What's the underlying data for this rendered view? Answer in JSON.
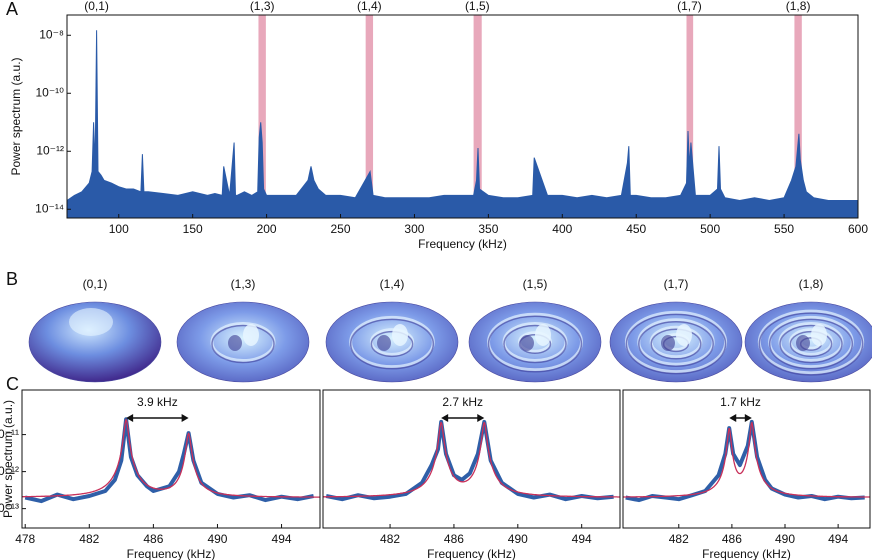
{
  "chart_data": [
    {
      "type": "area",
      "panel_label": "A",
      "x_label": "Frequency (kHz)",
      "y_label": "Power spectrum (a.u.)",
      "log_y": true,
      "color": "#2a5aa8",
      "xlim": [
        65,
        600
      ],
      "xticks": [
        100,
        150,
        200,
        250,
        300,
        350,
        400,
        450,
        500,
        550,
        600
      ],
      "ylim": [
        5e-15,
        5e-08
      ],
      "yticks": [
        {
          "value": 1e-08,
          "label": "10⁻⁸"
        },
        {
          "value": 1e-10,
          "label": "10⁻¹⁰"
        },
        {
          "value": 1e-12,
          "label": "10⁻¹²"
        },
        {
          "value": 1e-14,
          "label": "10⁻¹⁴"
        }
      ],
      "band_color": "#e8a8bb",
      "bands": [
        [
          194.5,
          199.5
        ],
        [
          267,
          272
        ],
        [
          340,
          345.5
        ],
        [
          484,
          488.5
        ],
        [
          557,
          562
        ]
      ],
      "mode_labels": [
        {
          "label": "(0,1)",
          "x": 85
        },
        {
          "label": "(1,3)",
          "x": 197
        },
        {
          "label": "(1,4)",
          "x": 269.5
        },
        {
          "label": "(1,5)",
          "x": 342.5
        },
        {
          "label": "(1,7)",
          "x": 486
        },
        {
          "label": "(1,8)",
          "x": 559.5
        }
      ],
      "x": [
        65,
        70,
        75,
        80,
        82,
        83,
        84,
        85,
        86,
        88,
        90,
        95,
        100,
        105,
        110,
        115,
        116,
        117,
        120,
        130,
        140,
        150,
        160,
        165,
        170,
        171,
        175,
        178,
        179,
        180,
        185,
        190,
        194,
        195,
        196,
        197,
        198,
        200,
        210,
        220,
        228,
        230,
        232,
        235,
        240,
        250,
        260,
        270,
        272,
        280,
        290,
        300,
        310,
        320,
        330,
        340,
        342,
        343,
        344,
        350,
        360,
        370,
        380,
        381,
        390,
        400,
        410,
        420,
        430,
        440,
        444,
        445,
        446,
        450,
        460,
        470,
        480,
        484,
        485,
        486,
        487,
        488,
        490,
        500,
        505,
        506,
        507,
        510,
        520,
        530,
        540,
        550,
        555,
        558,
        560,
        561,
        563,
        565,
        570,
        580,
        590,
        600
      ],
      "values": [
        2e-14,
        3e-14,
        4e-14,
        8e-14,
        2e-13,
        1e-11,
        3e-13,
        1.5e-08,
        2e-13,
        1.5e-13,
        1e-13,
        8e-14,
        6e-14,
        5e-14,
        5e-14,
        4e-14,
        8e-13,
        4e-14,
        4e-14,
        3.5e-14,
        3e-14,
        4e-14,
        3e-14,
        3.5e-14,
        3e-14,
        3e-13,
        3e-14,
        2e-12,
        3e-14,
        3e-14,
        4e-14,
        3e-14,
        4e-14,
        3e-12,
        1e-11,
        2e-12,
        5e-14,
        3e-14,
        3e-14,
        3e-14,
        1e-13,
        3e-13,
        1e-13,
        5e-14,
        3e-14,
        3e-14,
        2.5e-14,
        2e-13,
        3e-14,
        2.5e-14,
        2.5e-14,
        2.5e-14,
        2.5e-14,
        3e-14,
        3e-14,
        3e-14,
        1e-13,
        1.3e-12,
        5e-14,
        3e-14,
        2.5e-14,
        2.5e-14,
        3e-14,
        6e-13,
        3e-14,
        3e-14,
        2.5e-14,
        3e-14,
        2.5e-14,
        3e-14,
        4e-13,
        1.5e-12,
        3e-14,
        3e-14,
        2.5e-14,
        2.5e-14,
        3e-14,
        8e-14,
        5e-12,
        3e-13,
        2e-12,
        5e-13,
        3e-14,
        3e-14,
        5e-14,
        1.5e-12,
        5e-14,
        2.5e-14,
        2e-14,
        2.5e-14,
        2e-14,
        2.5e-14,
        1e-13,
        3e-13,
        4e-12,
        5e-13,
        1e-13,
        4e-14,
        2.5e-14,
        2e-14,
        2e-14,
        2e-14
      ]
    },
    {
      "type": "spectrum",
      "panel_label": "C",
      "x_label": "Frequency (kHz)",
      "y_label": "Power spectrum (a.u.)",
      "log_y": true,
      "color": "#2f5fa8",
      "xlim": [
        477.8,
        496.4
      ],
      "xticks": [
        478,
        482,
        486,
        490,
        494
      ],
      "ylim": [
        3e-14,
        1.6e-10
      ],
      "yticks": [
        {
          "value": 1e-11,
          "label": "10⁻¹¹"
        },
        {
          "value": 1e-12,
          "label": "10⁻¹²"
        },
        {
          "value": 1e-13,
          "label": "10⁻¹³"
        }
      ],
      "splitting": {
        "label": "3.9 kHz",
        "from": 484.3,
        "to": 488.2
      },
      "x": [
        478,
        479,
        480,
        481,
        482,
        483,
        483.6,
        484,
        484.3,
        484.6,
        485,
        485.6,
        486,
        487,
        487.6,
        487.9,
        488.2,
        488.5,
        489,
        490,
        491,
        492,
        493,
        494,
        495,
        496
      ],
      "values": [
        2e-13,
        1.6e-13,
        2.4e-13,
        1.8e-13,
        2.2e-13,
        3e-13,
        6e-13,
        2e-12,
        2.6e-11,
        2.5e-12,
        8e-13,
        4e-13,
        3e-13,
        4e-13,
        1e-12,
        3e-12,
        1.1e-11,
        2e-12,
        5e-13,
        2.5e-13,
        2e-13,
        2.3e-13,
        1.7e-13,
        2.1e-13,
        1.8e-13,
        2.2e-13
      ],
      "fit": {
        "color": "#c8305a",
        "background": 2e-13,
        "peaks": [
          {
            "center": 484.3,
            "amplitude": 2.5e-11,
            "width": 0.12
          },
          {
            "center": 488.2,
            "amplitude": 1.05e-11,
            "width": 0.13
          }
        ]
      }
    },
    {
      "type": "spectrum",
      "x_label": "Frequency (kHz)",
      "log_y": true,
      "color": "#2f5fa8",
      "xlim": [
        477.8,
        496.4
      ],
      "xticks": [
        482,
        486,
        490,
        494
      ],
      "ylim": [
        3e-14,
        1.6e-10
      ],
      "splitting": {
        "label": "2.7 kHz",
        "from": 485.2,
        "to": 487.9
      },
      "x": [
        478,
        479,
        480,
        481,
        482,
        483,
        484,
        484.6,
        485,
        485.2,
        485.5,
        486,
        486.5,
        487,
        487.5,
        487.9,
        488.3,
        489,
        490,
        491,
        492,
        493,
        494,
        495,
        496
      ],
      "values": [
        2.2e-13,
        1.8e-13,
        2.3e-13,
        1.9e-13,
        2.1e-13,
        2.5e-13,
        5e-13,
        1.5e-12,
        4e-12,
        2.2e-11,
        3e-12,
        8e-13,
        6e-13,
        9e-13,
        3e-12,
        2.2e-11,
        2e-12,
        5e-13,
        2.5e-13,
        2e-13,
        2.4e-13,
        1.8e-13,
        2.2e-13,
        1.9e-13,
        2.1e-13
      ],
      "fit": {
        "color": "#c8305a",
        "background": 2e-13,
        "peaks": [
          {
            "center": 485.2,
            "amplitude": 2.1e-11,
            "width": 0.12
          },
          {
            "center": 487.9,
            "amplitude": 2.1e-11,
            "width": 0.12
          }
        ]
      }
    },
    {
      "type": "spectrum",
      "x_label": "Frequency (kHz)",
      "log_y": true,
      "color": "#2f5fa8",
      "xlim": [
        477.8,
        496.4
      ],
      "xticks": [
        482,
        486,
        490,
        494
      ],
      "ylim": [
        3e-14,
        1.6e-10
      ],
      "splitting": {
        "label": "1.7 kHz",
        "from": 485.8,
        "to": 487.5
      },
      "x": [
        478,
        479,
        480,
        481,
        482,
        483,
        484,
        485,
        485.5,
        485.8,
        486.1,
        486.6,
        487.2,
        487.5,
        487.9,
        488.5,
        489,
        490,
        491,
        492,
        493,
        494,
        495,
        496
      ],
      "values": [
        2e-13,
        1.7e-13,
        2.2e-13,
        2e-13,
        1.8e-13,
        2.3e-13,
        3e-13,
        8e-13,
        3e-12,
        1.5e-11,
        3e-12,
        1.5e-12,
        5e-12,
        2.2e-11,
        2.5e-12,
        6e-13,
        3.5e-13,
        2.4e-13,
        2e-13,
        2.2e-13,
        1.8e-13,
        2.1e-13,
        1.9e-13,
        2e-13
      ],
      "fit": {
        "color": "#c8305a",
        "background": 2e-13,
        "peaks": [
          {
            "center": 485.8,
            "amplitude": 1.45e-11,
            "width": 0.12
          },
          {
            "center": 487.5,
            "amplitude": 2.1e-11,
            "width": 0.12
          }
        ]
      }
    }
  ],
  "mode_shapes": {
    "panel_label": "B",
    "labels": [
      "(0,1)",
      "(1,3)",
      "(1,4)",
      "(1,5)",
      "(1,7)",
      "(1,8)"
    ]
  }
}
